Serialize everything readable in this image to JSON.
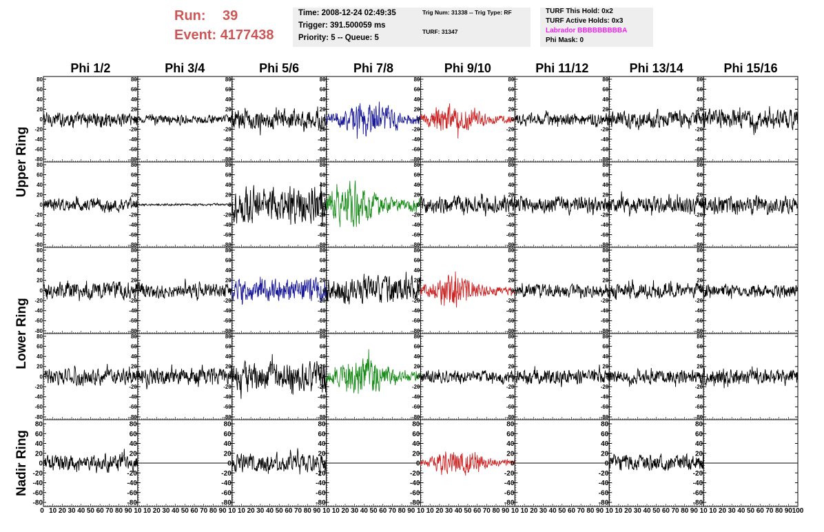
{
  "header": {
    "run_label": "Run:",
    "run_value": "39",
    "event_label": "Event:",
    "event_value": "4177438",
    "time": "Time: 2008-12-24 02:49:35",
    "trigger": "Trigger: 391.500059 ms",
    "priority_queue": "Priority: 5 -- Queue: 5",
    "trig_num_type": "Trig Num: 31338 -- Trig Type: RF",
    "turf": "TURF: 31347",
    "turf_this_hold": "TURF This Hold: 0x2",
    "turf_active_holds": "TURF Active Holds: 0x3",
    "labrador": "Labrador BBBBBBBBBA",
    "phi_mask": "Phi Mask: 0"
  },
  "colors": {
    "run_text": "#cc5555",
    "labrador_text": "#ee22ee",
    "info_box_bg": "#eeeeee",
    "trace_default": "#000000",
    "trace_blue": "#1a1a99",
    "trace_red": "#cc2222",
    "trace_green": "#1a8c1a"
  },
  "chart_data": {
    "type": "line",
    "columns": [
      "Phi 1/2",
      "Phi 3/4",
      "Phi 5/6",
      "Phi 7/8",
      "Phi 9/10",
      "Phi 11/12",
      "Phi 13/14",
      "Phi 15/16"
    ],
    "row_labels": [
      "Upper Ring",
      "Lower Ring",
      "Nadir Ring"
    ],
    "xlim": [
      0,
      100
    ],
    "ylim": [
      -80,
      80
    ],
    "x_ticks": [
      0,
      10,
      20,
      30,
      40,
      50,
      60,
      70,
      80,
      90,
      100
    ],
    "x_tick_labels": [
      "0",
      "10",
      "20",
      "30",
      "40",
      "50",
      "60",
      "70",
      "80",
      "90",
      "100"
    ],
    "x_tick_labels_compact": [
      "10",
      "20",
      "30",
      "40",
      "50",
      "60",
      "70",
      "80",
      "90",
      "10"
    ],
    "y_ticks": [
      80,
      60,
      40,
      20,
      0,
      -20,
      -40,
      -60,
      -80
    ],
    "y_tick_labels": [
      "80",
      "60",
      "40",
      "20",
      "0",
      "-20",
      "-40",
      "-60",
      "-80"
    ],
    "panels": [
      {
        "row": 0,
        "col": 0,
        "amp": 14,
        "color": "trace_default"
      },
      {
        "row": 0,
        "col": 1,
        "amp": 8,
        "color": "trace_default"
      },
      {
        "row": 0,
        "col": 2,
        "amp": 20,
        "color": "trace_default"
      },
      {
        "row": 0,
        "col": 3,
        "amp": 30,
        "color": "trace_blue",
        "peak": 0.45
      },
      {
        "row": 0,
        "col": 4,
        "amp": 24,
        "color": "trace_red",
        "peak": 0.35
      },
      {
        "row": 0,
        "col": 5,
        "amp": 12,
        "color": "trace_default"
      },
      {
        "row": 0,
        "col": 6,
        "amp": 16,
        "color": "trace_default"
      },
      {
        "row": 0,
        "col": 7,
        "amp": 18,
        "color": "trace_default"
      },
      {
        "row": 1,
        "col": 0,
        "amp": 12,
        "color": "trace_default"
      },
      {
        "row": 1,
        "col": 1,
        "amp": 2,
        "color": "trace_default"
      },
      {
        "row": 1,
        "col": 2,
        "amp": 36,
        "color": "trace_default"
      },
      {
        "row": 1,
        "col": 3,
        "amp": 34,
        "color": "trace_green",
        "peak": 0.3
      },
      {
        "row": 1,
        "col": 4,
        "amp": 16,
        "color": "trace_default"
      },
      {
        "row": 1,
        "col": 5,
        "amp": 16,
        "color": "trace_default"
      },
      {
        "row": 1,
        "col": 6,
        "amp": 16,
        "color": "trace_default"
      },
      {
        "row": 1,
        "col": 7,
        "amp": 18,
        "color": "trace_default"
      },
      {
        "row": 2,
        "col": 0,
        "amp": 16,
        "color": "trace_default"
      },
      {
        "row": 2,
        "col": 1,
        "amp": 14,
        "color": "trace_default"
      },
      {
        "row": 2,
        "col": 2,
        "amp": 22,
        "color": "trace_blue"
      },
      {
        "row": 2,
        "col": 3,
        "amp": 26,
        "color": "trace_default"
      },
      {
        "row": 2,
        "col": 4,
        "amp": 24,
        "color": "trace_red",
        "peak": 0.35
      },
      {
        "row": 2,
        "col": 5,
        "amp": 12,
        "color": "trace_default"
      },
      {
        "row": 2,
        "col": 6,
        "amp": 14,
        "color": "trace_default"
      },
      {
        "row": 2,
        "col": 7,
        "amp": 12,
        "color": "trace_default"
      },
      {
        "row": 3,
        "col": 0,
        "amp": 16,
        "color": "trace_default"
      },
      {
        "row": 3,
        "col": 1,
        "amp": 16,
        "color": "trace_default"
      },
      {
        "row": 3,
        "col": 2,
        "amp": 26,
        "color": "trace_default"
      },
      {
        "row": 3,
        "col": 3,
        "amp": 28,
        "color": "trace_green",
        "peak": 0.4
      },
      {
        "row": 3,
        "col": 4,
        "amp": 12,
        "color": "trace_default"
      },
      {
        "row": 3,
        "col": 5,
        "amp": 14,
        "color": "trace_default"
      },
      {
        "row": 3,
        "col": 6,
        "amp": 14,
        "color": "trace_default"
      },
      {
        "row": 3,
        "col": 7,
        "amp": 16,
        "color": "trace_default"
      },
      {
        "row": 4,
        "col": 0,
        "amp": 16,
        "color": "trace_default"
      },
      {
        "row": 4,
        "col": 1,
        "amp": 0,
        "color": "trace_default"
      },
      {
        "row": 4,
        "col": 2,
        "amp": 18,
        "color": "trace_default"
      },
      {
        "row": 4,
        "col": 3,
        "amp": 0,
        "color": "trace_default"
      },
      {
        "row": 4,
        "col": 4,
        "amp": 20,
        "color": "trace_red",
        "peak": 0.4
      },
      {
        "row": 4,
        "col": 5,
        "amp": 0,
        "color": "trace_default"
      },
      {
        "row": 4,
        "col": 6,
        "amp": 16,
        "color": "trace_default"
      },
      {
        "row": 4,
        "col": 7,
        "amp": 0,
        "color": "trace_default"
      }
    ]
  }
}
